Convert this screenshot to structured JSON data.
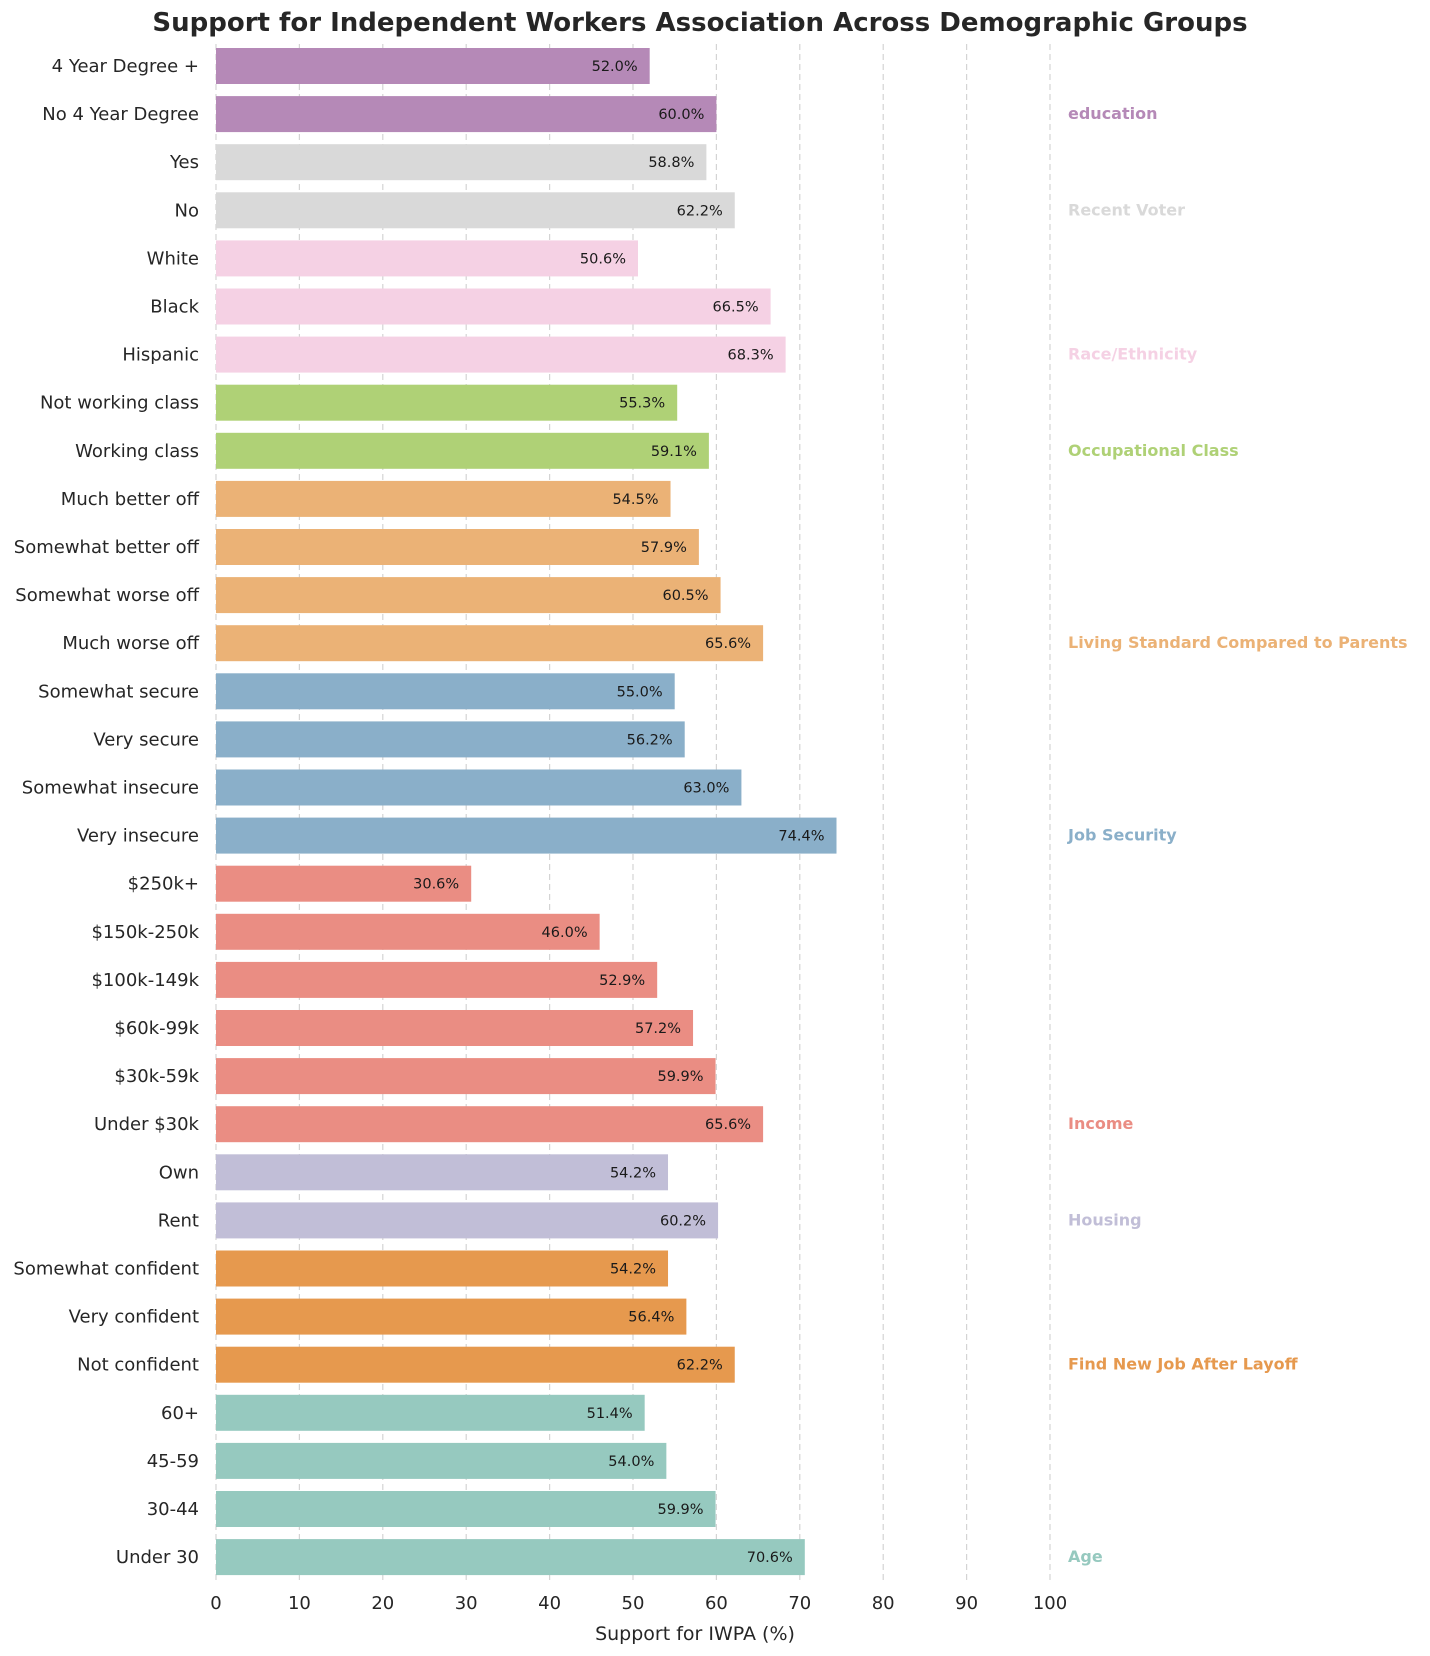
{
  "chart_data": {
    "type": "bar",
    "orientation": "horizontal",
    "title": "Support for Independent Workers Association Across Demographic Groups",
    "xlabel": "Support for IWPA (%)",
    "ylabel": "",
    "xlim": [
      0,
      100
    ],
    "xticks": [
      "0",
      "10",
      "20",
      "30",
      "40",
      "50",
      "60",
      "70",
      "80",
      "90",
      "100"
    ],
    "grid": "vertical dashed",
    "value_format": "one decimal with % suffix",
    "groups": [
      {
        "name": "education",
        "color": "#b589b7",
        "categories": [
          "4 Year Degree +",
          "No 4 Year Degree"
        ],
        "values": [
          52.0,
          60.0
        ]
      },
      {
        "name": "Recent Voter",
        "color": "#d9d9d9",
        "categories": [
          "Yes",
          "No"
        ],
        "values": [
          58.8,
          62.2
        ]
      },
      {
        "name": "Race/Ethnicity",
        "color": "#f5d1e4",
        "categories": [
          "White",
          "Black",
          "Hispanic"
        ],
        "values": [
          50.6,
          66.5,
          68.3
        ]
      },
      {
        "name": "Occupational Class",
        "color": "#afd176",
        "categories": [
          "Not working class",
          "Working class"
        ],
        "values": [
          55.3,
          59.1
        ]
      },
      {
        "name": "Living Standard Compared to Parents",
        "color": "#ebb276",
        "categories": [
          "Much better off",
          "Somewhat better off",
          "Somewhat worse off",
          "Much worse off"
        ],
        "values": [
          54.5,
          57.9,
          60.5,
          65.6
        ]
      },
      {
        "name": "Job Security",
        "color": "#8aafc9",
        "categories": [
          "Somewhat secure",
          "Very secure",
          "Somewhat insecure",
          "Very insecure"
        ],
        "values": [
          55.0,
          56.2,
          63.0,
          74.4
        ]
      },
      {
        "name": "Income",
        "color": "#ea8d83",
        "categories": [
          "$250k+",
          "$150k-250k",
          "$100k-149k",
          "$60k-99k",
          "$30k-59k",
          "Under $30k"
        ],
        "values": [
          30.6,
          46.0,
          52.9,
          57.2,
          59.9,
          65.6
        ]
      },
      {
        "name": "Housing",
        "color": "#c1bed7",
        "categories": [
          "Own",
          "Rent"
        ],
        "values": [
          54.2,
          60.2
        ]
      },
      {
        "name": "Find New Job After Layoff",
        "color": "#e6994e",
        "categories": [
          "Somewhat confident",
          "Very confident",
          "Not confident"
        ],
        "values": [
          54.2,
          56.4,
          62.2
        ]
      },
      {
        "name": "Age",
        "color": "#96c9bf",
        "categories": [
          "60+",
          "45-59",
          "30-44",
          "Under 30"
        ],
        "values": [
          51.4,
          54.0,
          59.9,
          70.6
        ]
      }
    ]
  }
}
